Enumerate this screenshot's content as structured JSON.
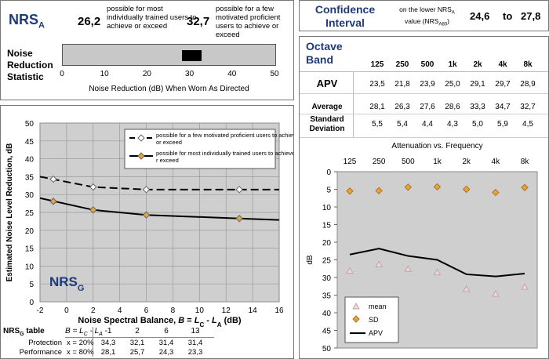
{
  "nrsa": {
    "title_main": "NRS",
    "title_sub": "A",
    "trained_value": "26,2",
    "trained_desc": "possible for most individually trained users to achieve or exceed",
    "motivated_value": "32,7",
    "motivated_desc": "possible for a few motivated proficient users to achieve or exceed",
    "stat_label": "Noise Reduction Statistic",
    "axis_label": "Noise Reduction (dB) When Worn As Directed",
    "ticks": [
      "0",
      "10",
      "20",
      "30",
      "40",
      "50"
    ],
    "range_low": 28.1,
    "range_high": 32.7,
    "axis_min": 0,
    "axis_max": 50
  },
  "confidence": {
    "title": "Confidence Interval",
    "desc_line1": "on the lower NRS",
    "desc_line1_sub": "A",
    "desc_line2": "value (NRS",
    "desc_line2_sub": "A80",
    "desc_line2_end": ")",
    "low": "24,6",
    "to": "to",
    "high": "27,8"
  },
  "octave": {
    "title": "Octave Band",
    "bands": [
      "125",
      "250",
      "500",
      "1k",
      "2k",
      "4k",
      "8k"
    ],
    "rows": [
      {
        "label": "APV",
        "values": [
          "23,5",
          "21,8",
          "23,9",
          "25,0",
          "29,1",
          "29,7",
          "28,9"
        ]
      },
      {
        "label": "Average",
        "values": [
          "28,1",
          "26,3",
          "27,6",
          "28,6",
          "33,3",
          "34,7",
          "32,7"
        ]
      },
      {
        "label": "Standard Deviation",
        "values": [
          "5,5",
          "5,4",
          "4,4",
          "4,3",
          "5,0",
          "5,9",
          "4,5"
        ]
      }
    ]
  },
  "nrsg_table": {
    "title": "NRS",
    "title_sub": "G",
    "title_end": " table",
    "header_label": "B = L",
    "header_sub1": "C",
    "header_mid": " - L",
    "header_sub2": "A",
    "b_values": [
      "-1",
      "2",
      "6",
      "13"
    ],
    "rows": [
      {
        "label": "Protection",
        "x": "x = 20%",
        "values": [
          "34,3",
          "32,1",
          "31,4",
          "31,4"
        ]
      },
      {
        "label": "Performance",
        "x": "x = 80%",
        "values": [
          "28,1",
          "25,7",
          "24,3",
          "23,3"
        ]
      }
    ]
  },
  "chart_data": [
    {
      "type": "line",
      "title": "",
      "badge": "NRS",
      "badge_sub": "G",
      "xlabel": "Noise Spectral Balance, B = LC - LA (dB)",
      "xlabel_parts": [
        "Noise Spectral Balance, ",
        "B",
        " = ",
        "L",
        "C",
        " - ",
        "L",
        "A",
        " (dB)"
      ],
      "ylabel": "Estimated Noise Level Reduction, dB",
      "xlim": [
        -2,
        16
      ],
      "ylim": [
        0,
        50
      ],
      "xticks": [
        "-2",
        "0",
        "2",
        "4",
        "6",
        "8",
        "10",
        "12",
        "14",
        "16"
      ],
      "yticks": [
        "0",
        "5",
        "10",
        "15",
        "20",
        "25",
        "30",
        "35",
        "40",
        "45",
        "50"
      ],
      "grid": true,
      "legend_position": "top-right",
      "series": [
        {
          "name": "possible for a few motivated proficient users to achieve or exceed",
          "style": "dashed",
          "marker_color": "#ffffff",
          "curve_x": [
            -2,
            2,
            6,
            13,
            16
          ],
          "curve_y": [
            35.0,
            32.1,
            31.4,
            31.4,
            31.4
          ],
          "points_x": [
            -1,
            2,
            6,
            13
          ],
          "points_y": [
            34.3,
            32.1,
            31.4,
            31.4
          ]
        },
        {
          "name": "possible for most individually trained users to achieve or exceed",
          "style": "solid",
          "marker_color": "#e8a33c",
          "curve_x": [
            -2,
            2,
            6,
            13,
            16
          ],
          "curve_y": [
            29.0,
            25.7,
            24.3,
            23.3,
            22.9
          ],
          "points_x": [
            -1,
            2,
            6,
            13
          ],
          "points_y": [
            28.1,
            25.7,
            24.3,
            23.3
          ]
        }
      ]
    },
    {
      "type": "line",
      "title": "Attenuation vs. Frequency",
      "ylabel": "dB",
      "categories": [
        "125",
        "250",
        "500",
        "1k",
        "2k",
        "4k",
        "8k"
      ],
      "yticks": [
        "0",
        "5",
        "10",
        "15",
        "20",
        "25",
        "30",
        "35",
        "40",
        "45",
        "50"
      ],
      "ylim": [
        0,
        50
      ],
      "y_inverted": true,
      "grid": false,
      "legend_position": "bottom-left",
      "series": [
        {
          "name": "mean",
          "marker": "triangle",
          "color": "#c9a0a8",
          "values": [
            28.1,
            26.3,
            27.6,
            28.6,
            33.3,
            34.7,
            32.7
          ]
        },
        {
          "name": "SD",
          "marker": "diamond",
          "color": "#e8a33c",
          "values": [
            5.5,
            5.4,
            4.4,
            4.3,
            5.0,
            5.9,
            4.5
          ]
        },
        {
          "name": "APV",
          "marker": "line",
          "color": "#000000",
          "values": [
            23.5,
            21.8,
            23.9,
            25.0,
            29.1,
            29.7,
            28.9
          ]
        }
      ]
    }
  ]
}
